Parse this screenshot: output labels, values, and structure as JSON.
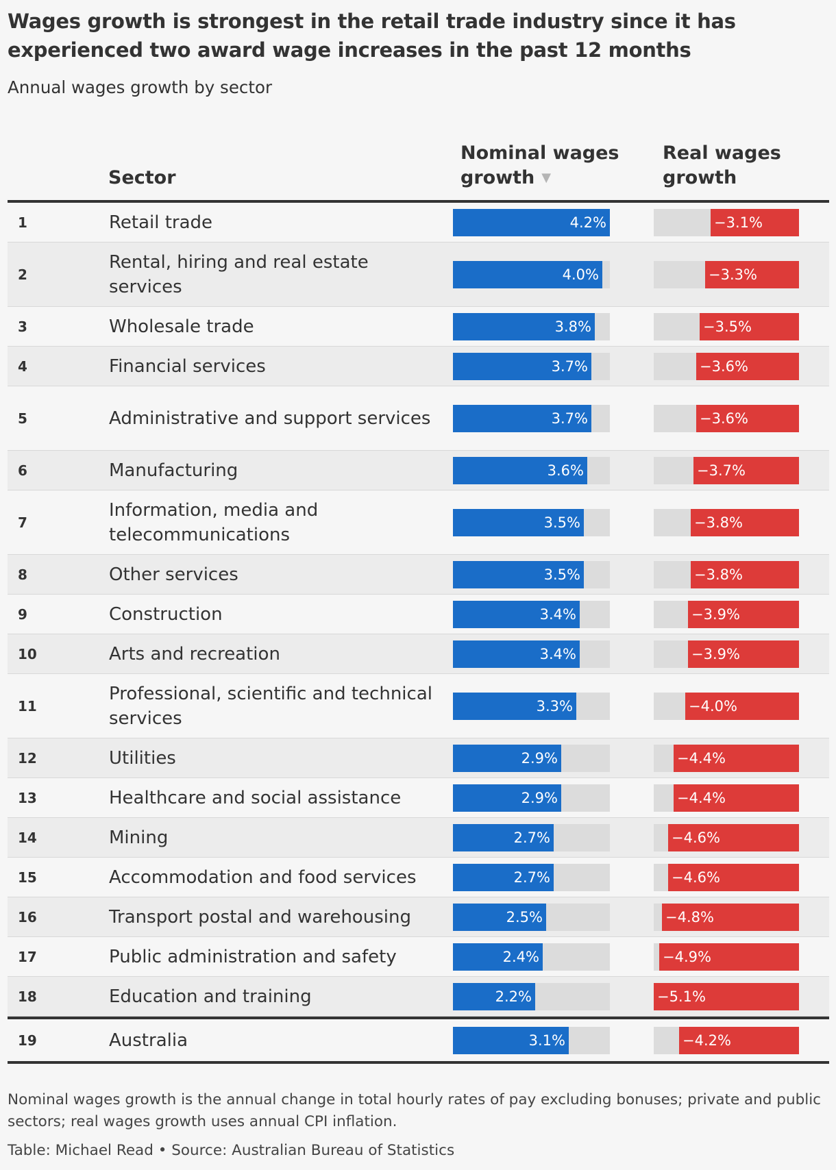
{
  "title": "Wages growth is strongest in the retail trade industry since it has experienced two award wage increases in the past 12 months",
  "subtitle": "Annual wages growth by sector",
  "columns": {
    "sector": "Sector",
    "nominal": "Nominal wages growth",
    "real": "Real wages growth",
    "sort_indicator": "▼"
  },
  "colors": {
    "nominal_bar": "#1a6dc8",
    "real_bar": "#dd3b39",
    "track": "#dcdcdc"
  },
  "chart_data": {
    "type": "table",
    "sorted_by": "Nominal wages growth",
    "nominal_scale_max": 4.2,
    "real_scale_max": 5.1,
    "rows": [
      {
        "rank": "1",
        "sector": "Retail trade",
        "nominal": 4.2,
        "nominal_label": "4.2%",
        "real": -3.1,
        "real_label": "−3.1%"
      },
      {
        "rank": "2",
        "sector": "Rental, hiring and real estate services",
        "nominal": 4.0,
        "nominal_label": "4.0%",
        "real": -3.3,
        "real_label": "−3.3%"
      },
      {
        "rank": "3",
        "sector": "Wholesale trade",
        "nominal": 3.8,
        "nominal_label": "3.8%",
        "real": -3.5,
        "real_label": "−3.5%"
      },
      {
        "rank": "4",
        "sector": "Financial services",
        "nominal": 3.7,
        "nominal_label": "3.7%",
        "real": -3.6,
        "real_label": "−3.6%"
      },
      {
        "rank": "5",
        "sector": "Administrative and support services",
        "nominal": 3.7,
        "nominal_label": "3.7%",
        "real": -3.6,
        "real_label": "−3.6%"
      },
      {
        "rank": "6",
        "sector": "Manufacturing",
        "nominal": 3.6,
        "nominal_label": "3.6%",
        "real": -3.7,
        "real_label": "−3.7%"
      },
      {
        "rank": "7",
        "sector": "Information, media and telecommunications",
        "nominal": 3.5,
        "nominal_label": "3.5%",
        "real": -3.8,
        "real_label": "−3.8%"
      },
      {
        "rank": "8",
        "sector": "Other services",
        "nominal": 3.5,
        "nominal_label": "3.5%",
        "real": -3.8,
        "real_label": "−3.8%"
      },
      {
        "rank": "9",
        "sector": "Construction",
        "nominal": 3.4,
        "nominal_label": "3.4%",
        "real": -3.9,
        "real_label": "−3.9%"
      },
      {
        "rank": "10",
        "sector": "Arts and recreation",
        "nominal": 3.4,
        "nominal_label": "3.4%",
        "real": -3.9,
        "real_label": "−3.9%"
      },
      {
        "rank": "11",
        "sector": "Professional, scientific and technical services",
        "nominal": 3.3,
        "nominal_label": "3.3%",
        "real": -4.0,
        "real_label": "−4.0%"
      },
      {
        "rank": "12",
        "sector": "Utilities",
        "nominal": 2.9,
        "nominal_label": "2.9%",
        "real": -4.4,
        "real_label": "−4.4%"
      },
      {
        "rank": "13",
        "sector": "Healthcare and social assistance",
        "nominal": 2.9,
        "nominal_label": "2.9%",
        "real": -4.4,
        "real_label": "−4.4%"
      },
      {
        "rank": "14",
        "sector": "Mining",
        "nominal": 2.7,
        "nominal_label": "2.7%",
        "real": -4.6,
        "real_label": "−4.6%"
      },
      {
        "rank": "15",
        "sector": "Accommodation and food services",
        "nominal": 2.7,
        "nominal_label": "2.7%",
        "real": -4.6,
        "real_label": "−4.6%"
      },
      {
        "rank": "16",
        "sector": "Transport postal and warehousing",
        "nominal": 2.5,
        "nominal_label": "2.5%",
        "real": -4.8,
        "real_label": "−4.8%"
      },
      {
        "rank": "17",
        "sector": "Public administration and safety",
        "nominal": 2.4,
        "nominal_label": "2.4%",
        "real": -4.9,
        "real_label": "−4.9%"
      },
      {
        "rank": "18",
        "sector": "Education and training",
        "nominal": 2.2,
        "nominal_label": "2.2%",
        "real": -5.1,
        "real_label": "−5.1%"
      },
      {
        "rank": "19",
        "sector": "Australia",
        "nominal": 3.1,
        "nominal_label": "3.1%",
        "real": -4.2,
        "real_label": "−4.2%",
        "total": true
      }
    ]
  },
  "note": "Nominal wages growth is the annual change in total hourly rates of pay excluding bonuses; private and public sectors; real wages growth uses annual CPI inflation.",
  "source": "Table: Michael Read • Source: Australian Bureau of Statistics"
}
